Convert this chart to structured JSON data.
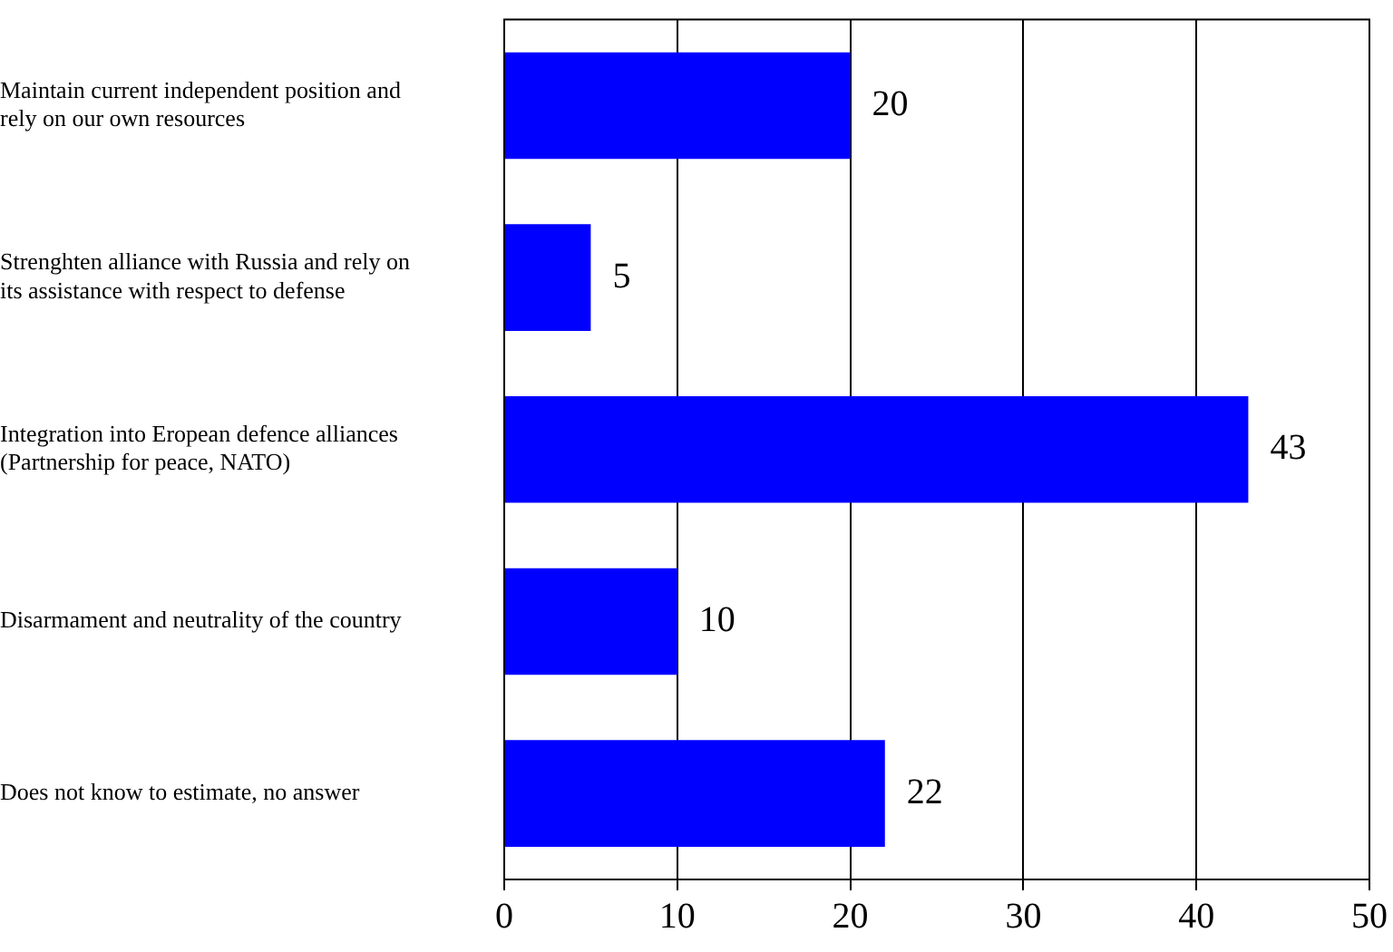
{
  "chart_data": {
    "type": "bar",
    "orientation": "horizontal",
    "categories": [
      "Maintain current independent position and rely on our own resources",
      "Strenghten alliance with Russia and rely on its assistance with respect to defense",
      "Integration into Eropean defence alliances (Partnership for peace, NATO)",
      "Disarmament and neutrality of the country",
      "Does not know to estimate, no answer"
    ],
    "values": [
      20,
      5,
      43,
      10,
      22
    ],
    "color": "#0000ff",
    "xlim": [
      0,
      50
    ],
    "xticks": [
      0,
      10,
      20,
      30,
      40,
      50
    ],
    "grid": "x",
    "data_labels": true
  }
}
